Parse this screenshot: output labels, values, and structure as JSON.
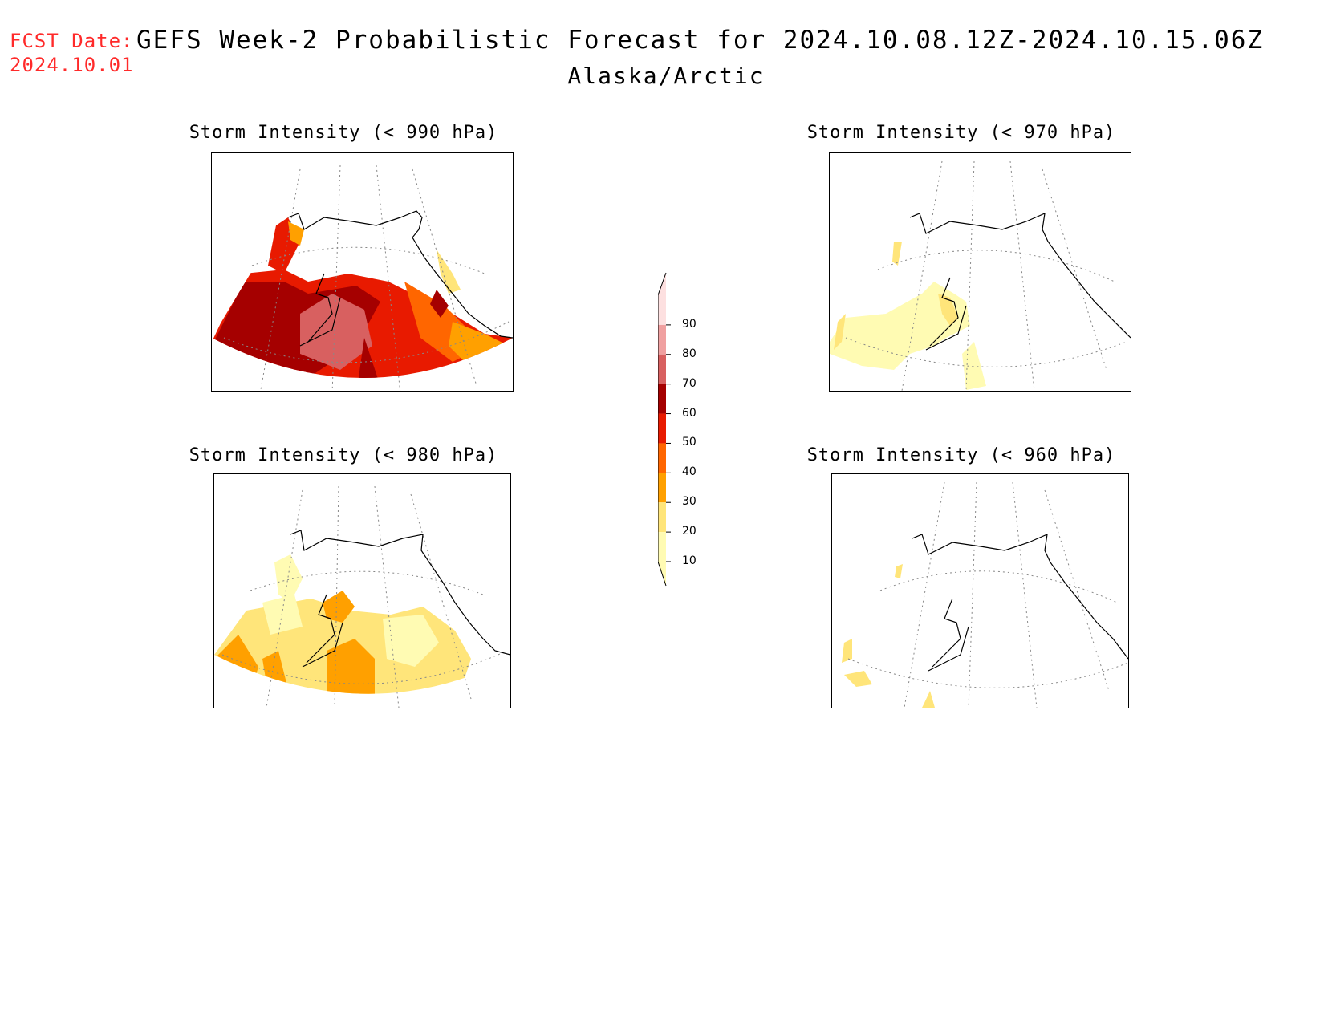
{
  "header": {
    "fcst_line1": "FCST Date:",
    "fcst_line2": "2024.10.01",
    "title": "GEFS Week-2 Probabilistic Forecast for 2024.10.08.12Z-2024.10.15.06Z",
    "subtitle": "Alaska/Arctic"
  },
  "panels": [
    {
      "title": "Storm Intensity (< 990 hPa)",
      "max_probability": 70
    },
    {
      "title": "Storm Intensity (< 970 hPa)",
      "max_probability": 20
    },
    {
      "title": "Storm Intensity (< 980 hPa)",
      "max_probability": 40
    },
    {
      "title": "Storm Intensity (< 960 hPa)",
      "max_probability": 20
    }
  ],
  "colorbar": {
    "levels": [
      "10",
      "20",
      "30",
      "40",
      "50",
      "60",
      "70",
      "80",
      "90"
    ],
    "colors": [
      "#fffbb3",
      "#ffe57a",
      "#ffa000",
      "#ff6600",
      "#e81a00",
      "#a50000",
      "#d86060",
      "#f0a0a0",
      "#fde0e0"
    ]
  }
}
